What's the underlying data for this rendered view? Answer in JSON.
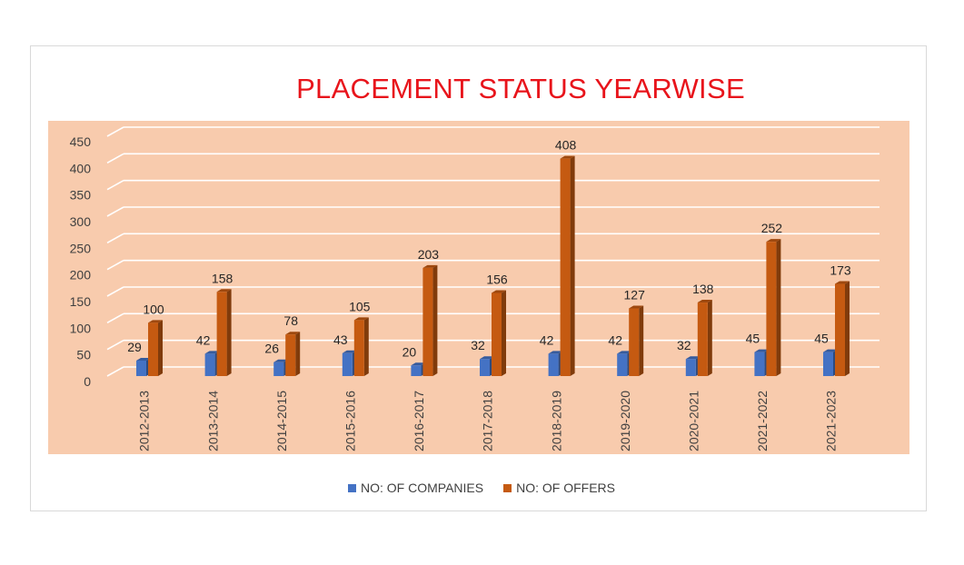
{
  "chart_data": {
    "type": "bar",
    "title": "PLACEMENT STATUS YEARWISE",
    "categories": [
      "2012-2013",
      "2013-2014",
      "2014-2015",
      "2015-2016",
      "2016-2017",
      "2017-2018",
      "2018-2019",
      "2019-2020",
      "2020-2021",
      "2021-2022",
      "2021-2023"
    ],
    "series": [
      {
        "name": "NO: OF COMPANIES",
        "color": "#4472c4",
        "values": [
          29,
          42,
          26,
          43,
          20,
          32,
          42,
          42,
          32,
          45,
          45
        ]
      },
      {
        "name": "NO: OF OFFERS",
        "color": "#c55a11",
        "values": [
          100,
          158,
          78,
          105,
          203,
          156,
          408,
          127,
          138,
          252,
          173
        ]
      }
    ],
    "ylim": [
      0,
      450
    ],
    "yticks": [
      "0",
      "50",
      "100",
      "150",
      "200",
      "250",
      "300",
      "350",
      "400",
      "450"
    ],
    "grid": true,
    "legend_position": "bottom",
    "plot_background": "#f8cbad"
  }
}
